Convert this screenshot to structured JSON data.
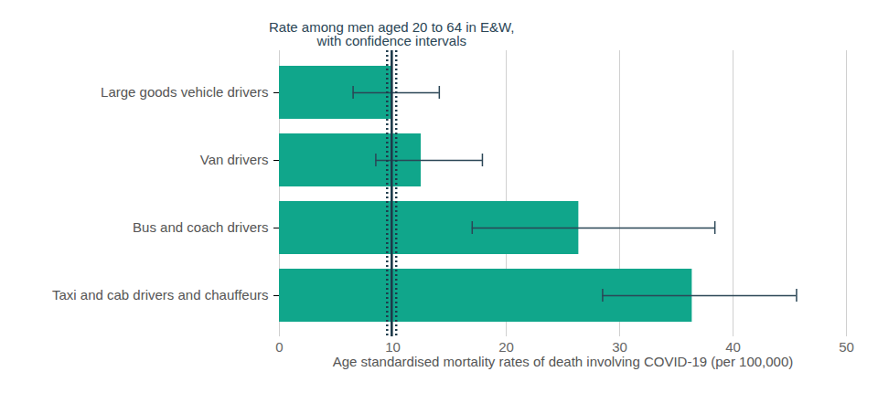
{
  "chart_data": {
    "type": "bar",
    "orientation": "horizontal",
    "categories": [
      "Large goods vehicle drivers",
      "Van drivers",
      "Bus and coach drivers",
      "Taxi and cab drivers and chauffeurs"
    ],
    "values": [
      9.9,
      12.5,
      26.4,
      36.4
    ],
    "lower": [
      6.5,
      8.5,
      17.0,
      28.5
    ],
    "upper": [
      14.1,
      17.9,
      38.4,
      45.6
    ],
    "color": "#10a68b",
    "x_label": "Age standardised mortality rates of death involving COVID-19 (per 100,000)",
    "xlim": [
      0,
      50
    ],
    "xticks": [
      0,
      10,
      20,
      30,
      40,
      50
    ],
    "grid": true,
    "reference_line": {
      "value": 9.9,
      "lower": 9.5,
      "upper": 10.3,
      "label": [
        "Rate among men aged 20 to 64 in E&W,",
        "with confidence intervals"
      ]
    }
  }
}
